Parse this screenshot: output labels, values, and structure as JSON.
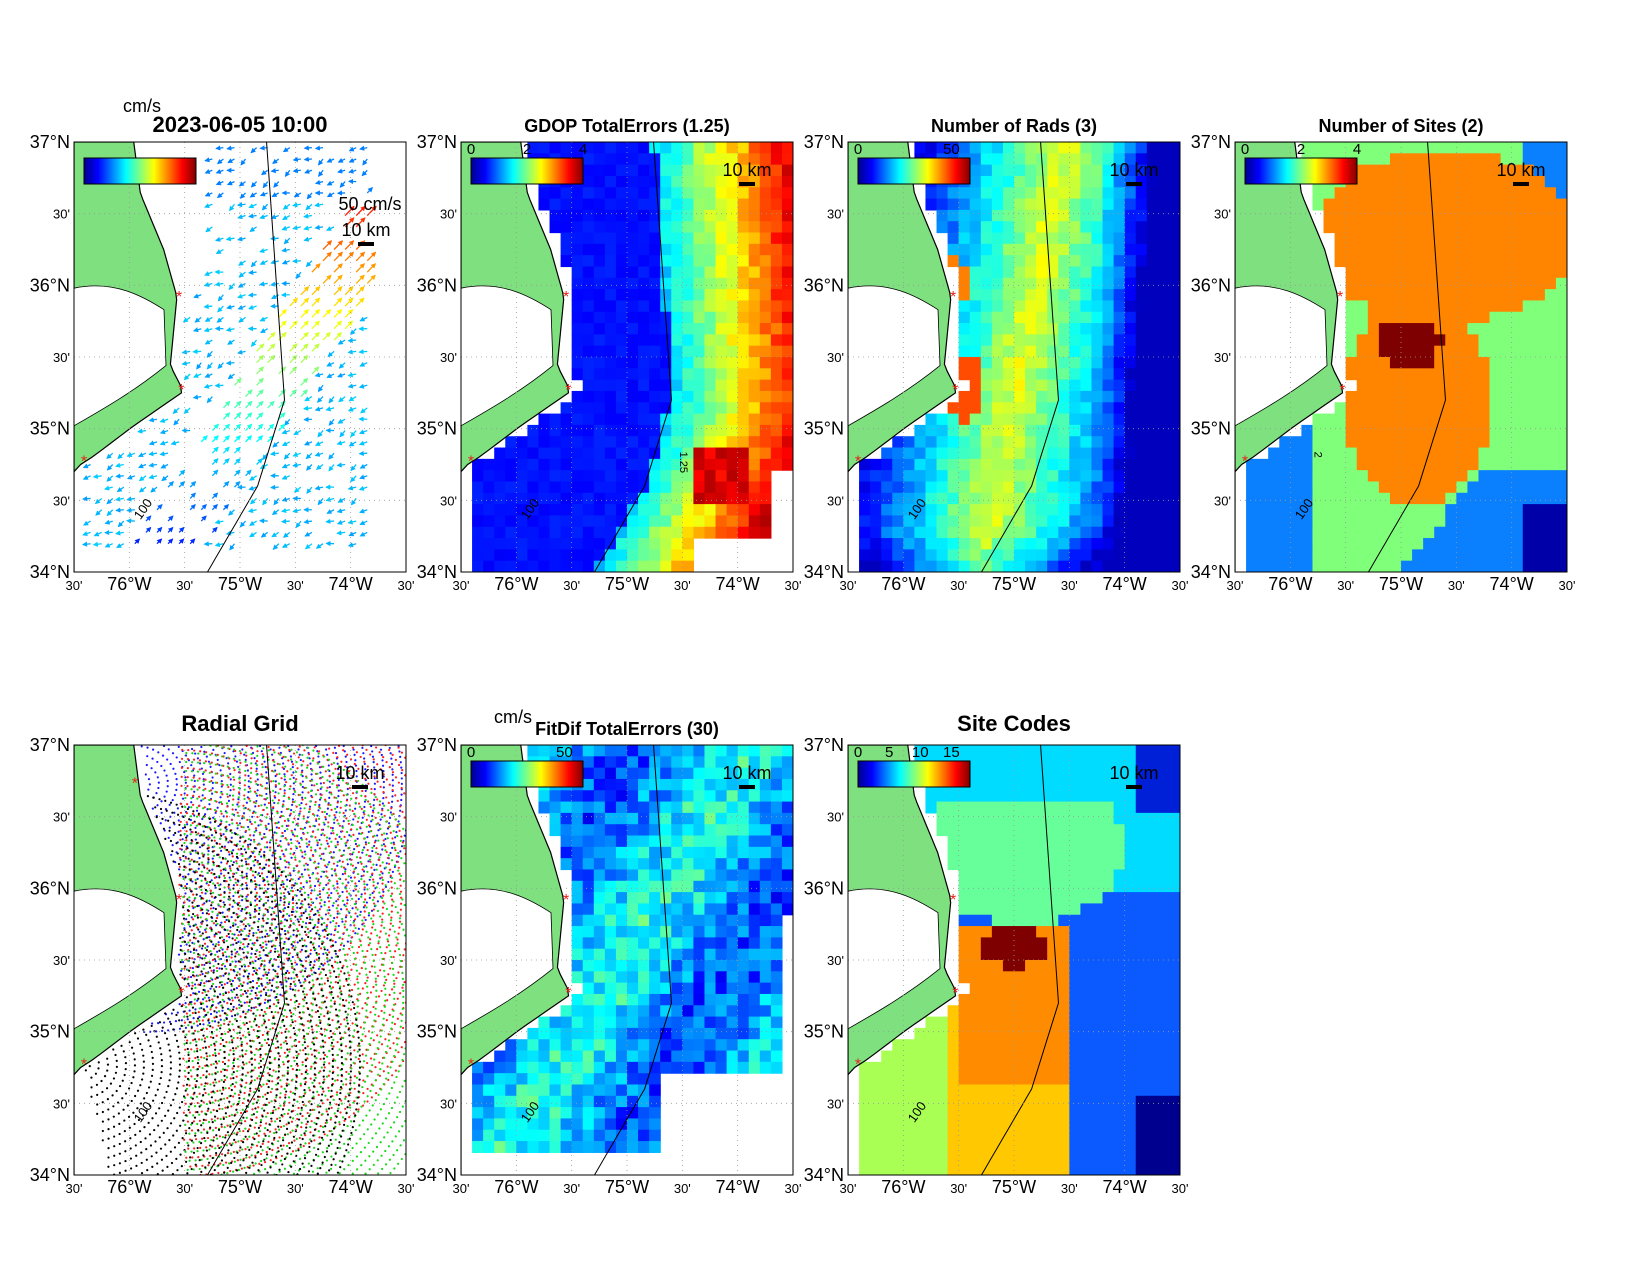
{
  "figure_timestamp": "2023-06-05 10:00",
  "axes_labels": {
    "lat_ticks": [
      "37°N",
      "30'",
      "36°N",
      "30'",
      "35°N",
      "30'",
      "34°N"
    ],
    "lon_ticks": [
      "30'",
      "76°W",
      "30'",
      "75°W",
      "30'",
      "74°W",
      "30'"
    ]
  },
  "scale_bar_label": "10 km",
  "vector_scale_label": "50 cm/s",
  "unit_label": "cm/s",
  "contour_labels": {
    "isobath": "100",
    "gdop": "1.25",
    "sites": "2"
  },
  "colors": {
    "land": "#7ee07e",
    "coast": "#000000",
    "site_marker": "#e8201a",
    "isobath": "#000000",
    "radial_sites": [
      "#1a1aff",
      "#ff2020",
      "#18d818",
      "#000000"
    ]
  },
  "panels": [
    {
      "id": "currents",
      "title": "2023-06-05 10:00",
      "colorbar_ticks": [],
      "unit": "cm/s"
    },
    {
      "id": "gdop",
      "title": "GDOP TotalErrors (1.25)",
      "colorbar_ticks": [
        "0",
        "2",
        "4"
      ]
    },
    {
      "id": "nrads",
      "title": "Number of Rads (3)",
      "colorbar_ticks": [
        "0",
        "50"
      ]
    },
    {
      "id": "nsites",
      "title": "Number of Sites (2)",
      "colorbar_ticks": [
        "0",
        "2",
        "4"
      ]
    },
    {
      "id": "radial",
      "title": "Radial Grid",
      "colorbar_ticks": []
    },
    {
      "id": "fitdif",
      "title": "FitDif TotalErrors (30)",
      "colorbar_ticks": [
        "0",
        "50"
      ],
      "unit": "cm/s"
    },
    {
      "id": "sitecodes",
      "title": "Site Codes",
      "colorbar_ticks": [
        "0",
        "5",
        "10",
        "15"
      ]
    }
  ],
  "chart_data": [
    {
      "type": "heatmap",
      "title": "2023-06-05 10:00",
      "xlim": [
        -76.5,
        -73.5
      ],
      "ylim": [
        34,
        37
      ],
      "note_series": "surface current vectors"
    },
    {
      "type": "heatmap",
      "title": "GDOP TotalErrors (1.25)",
      "xlim": [
        -76.5,
        -73.5
      ],
      "ylim": [
        34,
        37
      ],
      "colorbar_range": [
        0,
        4
      ]
    },
    {
      "type": "heatmap",
      "title": "Number of Rads (3)",
      "xlim": [
        -76.5,
        -73.5
      ],
      "ylim": [
        34,
        37
      ],
      "colorbar_range": [
        0,
        60
      ]
    },
    {
      "type": "heatmap",
      "title": "Number of Sites (2)",
      "xlim": [
        -76.5,
        -73.5
      ],
      "ylim": [
        34,
        37
      ],
      "colorbar_range": [
        0,
        4
      ]
    },
    {
      "type": "scatter",
      "title": "Radial Grid",
      "xlim": [
        -76.5,
        -73.5
      ],
      "ylim": [
        34,
        37
      ],
      "sites": [
        {
          "lon": -75.95,
          "lat": 36.73
        },
        {
          "lon": -75.55,
          "lat": 35.92
        },
        {
          "lon": -75.53,
          "lat": 35.27
        },
        {
          "lon": -76.41,
          "lat": 34.77
        }
      ]
    },
    {
      "type": "heatmap",
      "title": "FitDif TotalErrors (30)",
      "xlim": [
        -76.5,
        -73.5
      ],
      "ylim": [
        34,
        37
      ],
      "colorbar_range": [
        0,
        60
      ]
    },
    {
      "type": "heatmap",
      "title": "Site Codes",
      "xlim": [
        -76.5,
        -73.5
      ],
      "ylim": [
        34,
        37
      ],
      "colorbar_range": [
        0,
        18
      ]
    }
  ]
}
